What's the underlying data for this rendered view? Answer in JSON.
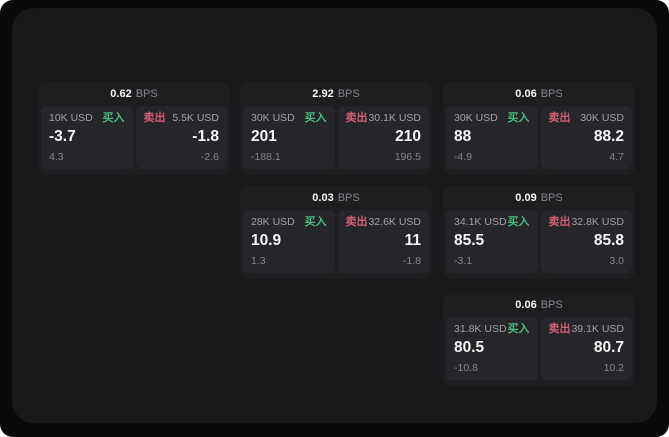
{
  "ui": {
    "bps_unit": "BPS",
    "buy_label": "买入",
    "sell_label": "卖出"
  },
  "colors": {
    "background": "#0a0a0b",
    "surface": "#19191b",
    "card": "#1e1e21",
    "panel": "#26262a",
    "buy_green": "#4dba7f",
    "sell_red": "#d35d74"
  },
  "cards": [
    {
      "bps": "0.62",
      "buy": {
        "amount": "10K USD",
        "value": "-3.7",
        "delta": "4.3"
      },
      "sell": {
        "amount": "5.5K USD",
        "value": "-1.8",
        "delta": "-2.6"
      }
    },
    {
      "bps": "2.92",
      "buy": {
        "amount": "30K USD",
        "value": "201",
        "delta": "-188.1"
      },
      "sell": {
        "amount": "30.1K USD",
        "value": "210",
        "delta": "196.5"
      }
    },
    {
      "bps": "0.06",
      "buy": {
        "amount": "30K USD",
        "value": "88",
        "delta": "-4.9"
      },
      "sell": {
        "amount": "30K USD",
        "value": "88.2",
        "delta": "4.7"
      }
    },
    {
      "bps": "0.03",
      "buy": {
        "amount": "28K USD",
        "value": "10.9",
        "delta": "1.3"
      },
      "sell": {
        "amount": "32.6K USD",
        "value": "11",
        "delta": "-1.8"
      }
    },
    {
      "bps": "0.09",
      "buy": {
        "amount": "34.1K USD",
        "value": "85.5",
        "delta": "-3.1"
      },
      "sell": {
        "amount": "32.8K USD",
        "value": "85.8",
        "delta": "3.0"
      }
    },
    {
      "bps": "0.06",
      "buy": {
        "amount": "31.8K USD",
        "value": "80.5",
        "delta": "-10.8"
      },
      "sell": {
        "amount": "39.1K USD",
        "value": "80.7",
        "delta": "10.2"
      }
    }
  ]
}
